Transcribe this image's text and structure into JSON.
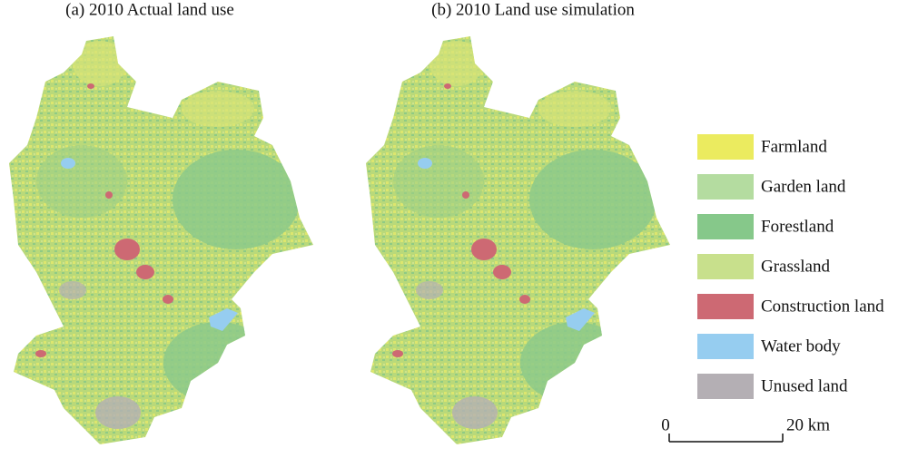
{
  "panels": [
    {
      "title": "(a) 2010 Actual land use"
    },
    {
      "title": "(b) 2010 Land use simulation"
    }
  ],
  "legend": [
    {
      "label": "Farmland",
      "color": "#ebeb5f"
    },
    {
      "label": "Garden land",
      "color": "#b4dca0"
    },
    {
      "label": "Forestland",
      "color": "#86c88a"
    },
    {
      "label": "Grassland",
      "color": "#c8e08c"
    },
    {
      "label": "Construction land",
      "color": "#cd6973"
    },
    {
      "label": "Water body",
      "color": "#96cdf0"
    },
    {
      "label": "Unused land",
      "color": "#b4afb4"
    }
  ],
  "scale_bar": {
    "labels": [
      "0",
      "20 km"
    ]
  }
}
